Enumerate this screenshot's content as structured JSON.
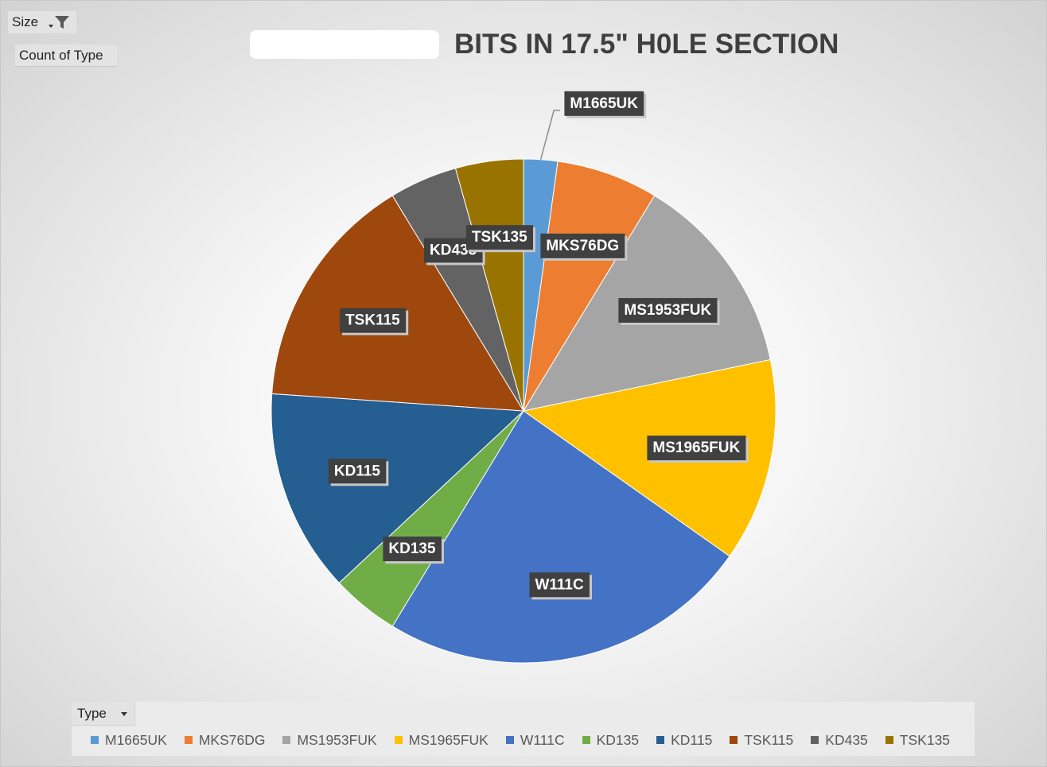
{
  "pivot": {
    "filter_field_label": "Size",
    "value_field_label": "Count of Type",
    "legend_field_label": "Type"
  },
  "chart_data": {
    "type": "pie",
    "title": "BITS IN 17.5\" H0LE SECTION",
    "categories": [
      "M1665UK",
      "MKS76DG",
      "MS1953FUK",
      "MS1965FUK",
      "W111C",
      "KD135",
      "KD115",
      "TSK115",
      "KD435",
      "TSK135"
    ],
    "values": [
      1,
      3,
      6,
      6,
      11,
      2,
      6,
      7,
      2,
      2
    ],
    "colors": [
      "#5b9bd5",
      "#ed7d31",
      "#a5a5a5",
      "#ffc000",
      "#4472c4",
      "#70ad47",
      "#255e91",
      "#9e480e",
      "#636363",
      "#997300"
    ],
    "data_labels": "category name",
    "legend_position": "bottom"
  }
}
